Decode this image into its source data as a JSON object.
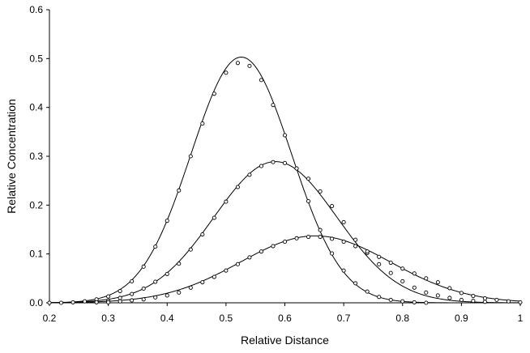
{
  "chart_data": {
    "type": "scatter",
    "xlabel": "Relative Distance",
    "ylabel": "Relative Concentration",
    "xlim": [
      0.2,
      1.0
    ],
    "ylim": [
      0.0,
      0.6
    ],
    "xticks": [
      "0.2",
      "0.3",
      "0.4",
      "0.5",
      "0.6",
      "0.7",
      "0.8",
      "0.9",
      "1"
    ],
    "yticks": [
      "0.0",
      "0.1",
      "0.2",
      "0.3",
      "0.4",
      "0.5",
      "0.6"
    ],
    "grid": false,
    "legend": "none",
    "series": [
      {
        "points": [
          [
            0.2,
            0.0
          ],
          [
            0.22,
            0.0
          ],
          [
            0.24,
            0.001
          ],
          [
            0.26,
            0.003
          ],
          [
            0.28,
            0.007
          ],
          [
            0.3,
            0.013
          ],
          [
            0.32,
            0.024
          ],
          [
            0.34,
            0.044
          ],
          [
            0.36,
            0.074
          ],
          [
            0.38,
            0.115
          ],
          [
            0.4,
            0.168
          ],
          [
            0.42,
            0.23
          ],
          [
            0.44,
            0.3
          ],
          [
            0.46,
            0.367
          ],
          [
            0.48,
            0.428
          ],
          [
            0.5,
            0.471
          ],
          [
            0.52,
            0.491
          ],
          [
            0.54,
            0.485
          ],
          [
            0.56,
            0.456
          ],
          [
            0.58,
            0.405
          ],
          [
            0.6,
            0.343
          ],
          [
            0.62,
            0.275
          ],
          [
            0.64,
            0.208
          ],
          [
            0.66,
            0.149
          ],
          [
            0.68,
            0.101
          ],
          [
            0.7,
            0.066
          ],
          [
            0.72,
            0.04
          ],
          [
            0.74,
            0.023
          ],
          [
            0.76,
            0.012
          ],
          [
            0.78,
            0.006
          ],
          [
            0.8,
            0.003
          ],
          [
            0.82,
            0.001
          ],
          [
            0.84,
            0.0
          ]
        ],
        "fit": {
          "peak_x": 0.526,
          "peak_y": 0.503,
          "width": 0.0853
        }
      },
      {
        "points": [
          [
            0.28,
            0.001
          ],
          [
            0.3,
            0.004
          ],
          [
            0.32,
            0.01
          ],
          [
            0.34,
            0.018
          ],
          [
            0.36,
            0.029
          ],
          [
            0.38,
            0.043
          ],
          [
            0.4,
            0.059
          ],
          [
            0.42,
            0.08
          ],
          [
            0.44,
            0.109
          ],
          [
            0.46,
            0.14
          ],
          [
            0.48,
            0.174
          ],
          [
            0.5,
            0.207
          ],
          [
            0.52,
            0.237
          ],
          [
            0.54,
            0.262
          ],
          [
            0.56,
            0.28
          ],
          [
            0.58,
            0.288
          ],
          [
            0.6,
            0.286
          ],
          [
            0.62,
            0.275
          ],
          [
            0.64,
            0.254
          ],
          [
            0.66,
            0.228
          ],
          [
            0.68,
            0.198
          ],
          [
            0.7,
            0.165
          ],
          [
            0.72,
            0.129
          ],
          [
            0.74,
            0.102
          ],
          [
            0.76,
            0.079
          ],
          [
            0.78,
            0.061
          ],
          [
            0.8,
            0.044
          ],
          [
            0.82,
            0.031
          ],
          [
            0.84,
            0.021
          ],
          [
            0.86,
            0.015
          ],
          [
            0.88,
            0.01
          ],
          [
            0.9,
            0.006
          ],
          [
            0.92,
            0.004
          ],
          [
            0.94,
            0.002
          ]
        ],
        "fit": {
          "peak_x": 0.584,
          "peak_y": 0.289,
          "width": 0.1045
        }
      },
      {
        "points": [
          [
            0.3,
            0.001
          ],
          [
            0.32,
            0.003
          ],
          [
            0.34,
            0.005
          ],
          [
            0.36,
            0.007
          ],
          [
            0.38,
            0.011
          ],
          [
            0.4,
            0.015
          ],
          [
            0.42,
            0.021
          ],
          [
            0.44,
            0.031
          ],
          [
            0.46,
            0.042
          ],
          [
            0.48,
            0.053
          ],
          [
            0.5,
            0.066
          ],
          [
            0.52,
            0.079
          ],
          [
            0.54,
            0.093
          ],
          [
            0.56,
            0.105
          ],
          [
            0.58,
            0.116
          ],
          [
            0.6,
            0.125
          ],
          [
            0.62,
            0.132
          ],
          [
            0.64,
            0.135
          ],
          [
            0.66,
            0.135
          ],
          [
            0.68,
            0.131
          ],
          [
            0.7,
            0.125
          ],
          [
            0.72,
            0.116
          ],
          [
            0.74,
            0.105
          ],
          [
            0.76,
            0.094
          ],
          [
            0.78,
            0.082
          ],
          [
            0.8,
            0.07
          ],
          [
            0.82,
            0.06
          ],
          [
            0.84,
            0.05
          ],
          [
            0.86,
            0.042
          ],
          [
            0.88,
            0.03
          ],
          [
            0.9,
            0.02
          ],
          [
            0.92,
            0.014
          ],
          [
            0.94,
            0.009
          ],
          [
            0.96,
            0.006
          ],
          [
            0.98,
            0.003
          ],
          [
            1.0,
            0.001
          ]
        ],
        "fit": {
          "peak_x": 0.652,
          "peak_y": 0.137,
          "width": 0.128
        }
      }
    ]
  }
}
